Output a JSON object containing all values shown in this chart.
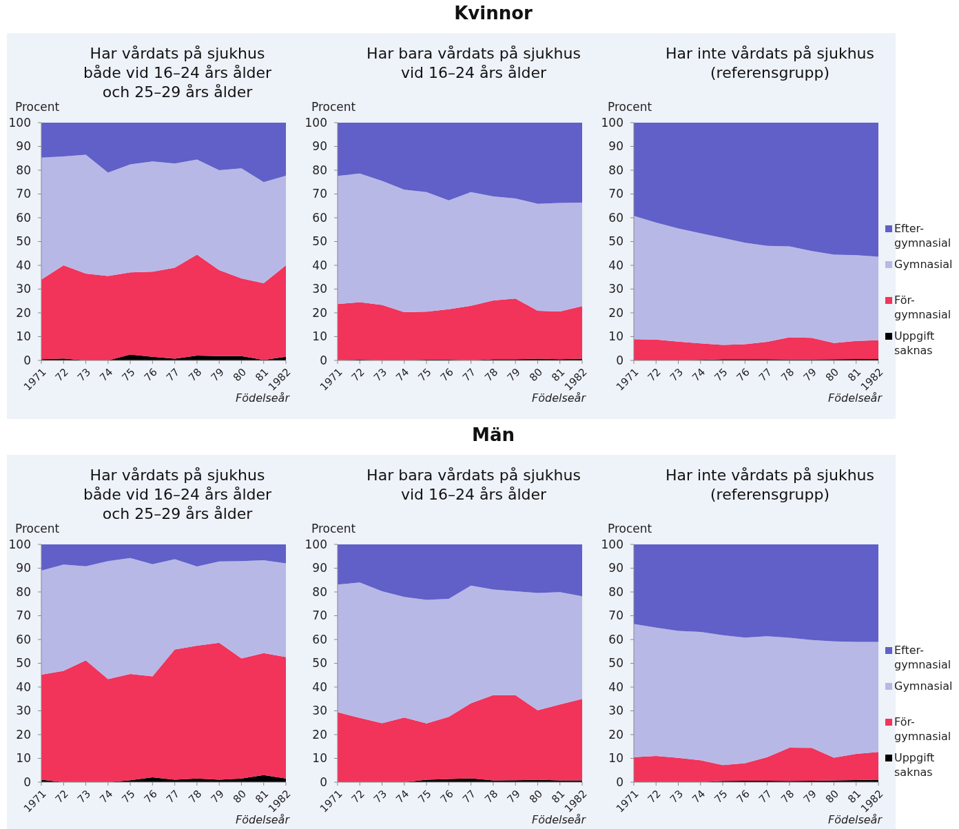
{
  "chart_data": [
    {
      "type": "area",
      "stacked": true,
      "title": "Har vårdats på sjukhus\nbåde vid 16–24 års ålder\noch 25–29 års ålder",
      "annotations": [
        "Kvinnor"
      ],
      "ylabel": "Procent",
      "xlabel": "Födelseår",
      "categories": [
        "1971",
        "72",
        "73",
        "74",
        "75",
        "76",
        "77",
        "78",
        "79",
        "80",
        "81",
        "1982"
      ],
      "ylim": [
        0,
        100
      ],
      "yticks": [
        0,
        10,
        20,
        30,
        40,
        50,
        60,
        70,
        80,
        90,
        100
      ],
      "grid": false,
      "legend": false,
      "series": [
        {
          "color": "#000000",
          "values": [
            0.5,
            0.8,
            0,
            0,
            2.5,
            1.5,
            0.7,
            2,
            1.8,
            1.8,
            0.2,
            1.5
          ]
        },
        {
          "color": "#f2335a",
          "values": [
            33.5,
            39.2,
            36.5,
            35.5,
            34.5,
            35.8,
            38.3,
            42.5,
            36.2,
            32.7,
            32.3,
            38.5
          ]
        },
        {
          "color": "#b8b8e6",
          "values": [
            51.3,
            45.8,
            50,
            43.5,
            45.5,
            46.4,
            43.8,
            40,
            42,
            46.3,
            42.5,
            37.7
          ]
        },
        {
          "color": "#6060c8",
          "values": [
            14.7,
            14.2,
            13.5,
            21,
            17.5,
            16.3,
            17.2,
            15.5,
            20,
            19.2,
            25,
            22.3
          ]
        }
      ]
    },
    {
      "type": "area",
      "stacked": true,
      "title": "Har bara vårdats på sjukhus\nvid 16–24 års ålder",
      "ylabel": "Procent",
      "xlabel": "Födelseår",
      "categories": [
        "1971",
        "72",
        "73",
        "74",
        "75",
        "76",
        "77",
        "78",
        "79",
        "80",
        "81",
        "1982"
      ],
      "ylim": [
        0,
        100
      ],
      "yticks": [
        0,
        10,
        20,
        30,
        40,
        50,
        60,
        70,
        80,
        90,
        100
      ],
      "grid": false,
      "legend": false,
      "series": [
        {
          "color": "#000000",
          "values": [
            0,
            0.3,
            0,
            0,
            0.3,
            0.3,
            0,
            0.5,
            0.5,
            0.7,
            0.5,
            0.7
          ]
        },
        {
          "color": "#f2335a",
          "values": [
            23.7,
            24.2,
            23.3,
            20.3,
            20.2,
            21.2,
            23,
            24.7,
            25.5,
            20.2,
            20.1,
            22.1
          ]
        },
        {
          "color": "#b8b8e6",
          "values": [
            53.9,
            54.1,
            52.2,
            51.5,
            50.3,
            45.8,
            47.8,
            43.8,
            42.1,
            45,
            45.6,
            43.6
          ]
        },
        {
          "color": "#6060c8",
          "values": [
            22.4,
            21.4,
            24.5,
            28.2,
            29.2,
            32.7,
            29.2,
            31,
            31.9,
            34.1,
            33.8,
            33.6
          ]
        }
      ]
    },
    {
      "type": "area",
      "stacked": true,
      "title": "Har inte vårdats på sjukhus\n(referensgrupp)",
      "ylabel": "Procent",
      "xlabel": "Födelseår",
      "categories": [
        "1971",
        "72",
        "73",
        "74",
        "75",
        "76",
        "77",
        "78",
        "79",
        "80",
        "81",
        "1982"
      ],
      "ylim": [
        0,
        100
      ],
      "yticks": [
        0,
        10,
        20,
        30,
        40,
        50,
        60,
        70,
        80,
        90,
        100
      ],
      "grid": false,
      "legend": "right",
      "series": [
        {
          "name": "Uppgift saknas",
          "color": "#000000",
          "values": [
            0,
            0,
            0,
            0.2,
            0.5,
            0.5,
            0.5,
            0.4,
            0.4,
            0.5,
            0.6,
            0.6
          ]
        },
        {
          "name": "För-gymnasial",
          "color": "#f2335a",
          "values": [
            8.9,
            8.8,
            7.9,
            7,
            6,
            6.3,
            7.3,
            9.3,
            9.1,
            6.8,
            7.6,
            7.9
          ]
        },
        {
          "name": "Gymnasial",
          "color": "#b8b8e6",
          "values": [
            51.9,
            49.2,
            47.6,
            46.3,
            45,
            42.7,
            40.4,
            38.3,
            36.5,
            37.2,
            36.1,
            35.1
          ]
        },
        {
          "name": "Efter-gymnasial",
          "color": "#6060c8",
          "values": [
            39.2,
            42,
            44.5,
            46.5,
            48.5,
            50.5,
            51.8,
            52,
            54,
            55.5,
            55.7,
            56.4
          ]
        }
      ]
    },
    {
      "type": "area",
      "stacked": true,
      "title": "Har vårdats på sjukhus\nbåde vid 16–24 års ålder\noch 25–29 års ålder",
      "annotations": [
        "Män"
      ],
      "ylabel": "Procent",
      "xlabel": "Födelseår",
      "categories": [
        "1971",
        "72",
        "73",
        "74",
        "75",
        "76",
        "77",
        "78",
        "79",
        "80",
        "81",
        "1982"
      ],
      "ylim": [
        0,
        100
      ],
      "yticks": [
        0,
        10,
        20,
        30,
        40,
        50,
        60,
        70,
        80,
        90,
        100
      ],
      "grid": false,
      "legend": false,
      "series": [
        {
          "color": "#000000",
          "values": [
            1,
            0,
            0,
            0,
            0.8,
            2,
            1,
            1.5,
            1,
            1.5,
            3,
            1.5
          ]
        },
        {
          "color": "#f2335a",
          "values": [
            44.2,
            46.8,
            51.2,
            43.3,
            44.7,
            42.5,
            54.8,
            55.9,
            57.6,
            50.5,
            51.3,
            51.1
          ]
        },
        {
          "color": "#b8b8e6",
          "values": [
            43.8,
            44.7,
            39.6,
            49.7,
            48.8,
            47.2,
            38,
            33.3,
            34.2,
            41,
            39,
            39.4
          ]
        },
        {
          "color": "#6060c8",
          "values": [
            11,
            8.5,
            9.2,
            7,
            5.7,
            8.3,
            6.2,
            9.3,
            7.2,
            7,
            6.7,
            8
          ]
        }
      ]
    },
    {
      "type": "area",
      "stacked": true,
      "title": "Har bara vårdats på sjukhus\nvid 16–24 års ålder",
      "ylabel": "Procent",
      "xlabel": "Födelseår",
      "categories": [
        "1971",
        "72",
        "73",
        "74",
        "75",
        "76",
        "77",
        "78",
        "79",
        "80",
        "81",
        "1982"
      ],
      "ylim": [
        0,
        100
      ],
      "yticks": [
        0,
        10,
        20,
        30,
        40,
        50,
        60,
        70,
        80,
        90,
        100
      ],
      "grid": false,
      "legend": false,
      "series": [
        {
          "color": "#000000",
          "values": [
            0,
            0,
            0,
            0,
            1,
            1.3,
            1.6,
            0.7,
            0.8,
            1,
            0.7,
            0.7
          ]
        },
        {
          "color": "#f2335a",
          "values": [
            29.4,
            27,
            24.8,
            27.2,
            23.7,
            26.2,
            31.6,
            35.9,
            35.8,
            29.2,
            32,
            34.3
          ]
        },
        {
          "color": "#b8b8e6",
          "values": [
            53.7,
            57,
            55.5,
            50.7,
            52,
            49.6,
            49.5,
            44.4,
            43.7,
            49.4,
            47.2,
            43.2
          ]
        },
        {
          "color": "#6060c8",
          "values": [
            16.9,
            16,
            19.7,
            22.1,
            23.3,
            22.9,
            17.3,
            19,
            19.7,
            20.4,
            20.1,
            21.8
          ]
        }
      ]
    },
    {
      "type": "area",
      "stacked": true,
      "title": "Har inte vårdats på sjukhus\n(referensgrupp)",
      "ylabel": "Procent",
      "xlabel": "Födelseår",
      "categories": [
        "1971",
        "72",
        "73",
        "74",
        "75",
        "76",
        "77",
        "78",
        "79",
        "80",
        "81",
        "1982"
      ],
      "ylim": [
        0,
        100
      ],
      "yticks": [
        0,
        10,
        20,
        30,
        40,
        50,
        60,
        70,
        80,
        90,
        100
      ],
      "grid": false,
      "legend": "right",
      "series": [
        {
          "name": "Uppgift saknas",
          "color": "#000000",
          "values": [
            0,
            0,
            0,
            0,
            0.5,
            0.6,
            0.6,
            0.5,
            0.6,
            0.7,
            0.9,
            1
          ]
        },
        {
          "name": "För-gymnasial",
          "color": "#f2335a",
          "values": [
            10.5,
            11,
            10.2,
            9.2,
            6.7,
            7.4,
            9.9,
            14,
            13.8,
            9.6,
            11,
            11.7
          ]
        },
        {
          "name": "Gymnasial",
          "color": "#b8b8e6",
          "values": [
            56,
            54,
            53.4,
            54,
            54.6,
            52.8,
            50.9,
            46.2,
            45.4,
            48.9,
            47.1,
            46.3
          ]
        },
        {
          "name": "Efter-gymnasial",
          "color": "#6060c8",
          "values": [
            33.5,
            35,
            36.4,
            36.8,
            38.2,
            39.2,
            38.6,
            39.3,
            40.2,
            40.8,
            41,
            41
          ]
        }
      ]
    }
  ]
}
